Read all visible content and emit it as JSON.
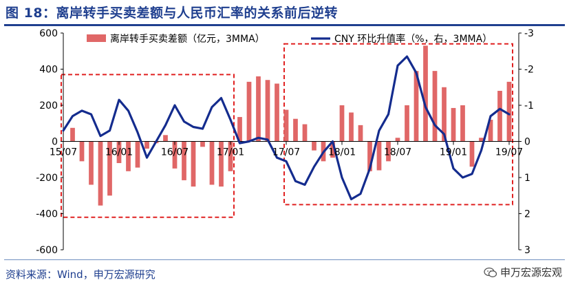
{
  "title": "图 18：离岸转手买卖差额与人民币汇率的关系前后逆转",
  "source": "资料来源：Wind，申万宏源研究",
  "brand": "申万宏源宏观",
  "brand_icon": "wechat-icon",
  "colors": {
    "bar": "#e06767",
    "line": "#142c8e",
    "box": "#e02020",
    "title": "#1f3f8f",
    "axis": "#000000"
  },
  "chart_data": {
    "type": "bar+line",
    "legend": {
      "placement": "top",
      "bar_label": "离岸转手买卖差额（亿元，3MMA）",
      "line_label": "CNY 环比升值率（%，右，3MMA）"
    },
    "left_axis": {
      "ylim": [
        -600,
        600
      ],
      "ticks": [
        "600",
        "400",
        "200",
        "0",
        "-200",
        "-400",
        "-600"
      ],
      "tick_values": [
        600,
        400,
        200,
        0,
        -200,
        -400,
        -600
      ]
    },
    "right_axis": {
      "ylim": [
        -3,
        3
      ],
      "inverted": true,
      "ticks": [
        "-3",
        "-2",
        "-1",
        "0",
        "1",
        "2",
        "3"
      ],
      "tick_values": [
        -3,
        -2,
        -1,
        0,
        1,
        2,
        3
      ]
    },
    "x_ticks": [
      {
        "label": "15/07",
        "index": 0
      },
      {
        "label": "16/01",
        "index": 6
      },
      {
        "label": "16/07",
        "index": 12
      },
      {
        "label": "17/01",
        "index": 18
      },
      {
        "label": "17/07",
        "index": 24
      },
      {
        "label": "18/01",
        "index": 30
      },
      {
        "label": "18/07",
        "index": 36
      },
      {
        "label": "19/01",
        "index": 42
      },
      {
        "label": "19/07",
        "index": 48
      }
    ],
    "months": [
      "15/07",
      "15/08",
      "15/09",
      "15/10",
      "15/11",
      "15/12",
      "16/01",
      "16/02",
      "16/03",
      "16/04",
      "16/05",
      "16/06",
      "16/07",
      "16/08",
      "16/09",
      "16/10",
      "16/11",
      "16/12",
      "17/01",
      "17/02",
      "17/03",
      "17/04",
      "17/05",
      "17/06",
      "17/07",
      "17/08",
      "17/09",
      "17/10",
      "17/11",
      "17/12",
      "18/01",
      "18/02",
      "18/03",
      "18/04",
      "18/05",
      "18/06",
      "18/07",
      "18/08",
      "18/09",
      "18/10",
      "18/11",
      "18/12",
      "19/01",
      "19/02",
      "19/03",
      "19/04",
      "19/05",
      "19/06",
      "19/07"
    ],
    "series": [
      {
        "name": "离岸转手买卖差额（亿元，3MMA）",
        "type": "bar",
        "axis": "left",
        "values": [
          0,
          75,
          -110,
          -240,
          -355,
          -300,
          -120,
          -165,
          -145,
          -40,
          -10,
          35,
          -150,
          -215,
          -250,
          -30,
          -240,
          -250,
          -165,
          135,
          330,
          360,
          340,
          320,
          175,
          125,
          95,
          -50,
          -110,
          -90,
          200,
          160,
          90,
          -165,
          -160,
          -110,
          20,
          200,
          390,
          530,
          390,
          300,
          185,
          200,
          -140,
          20,
          120,
          280,
          330
        ]
      },
      {
        "name": "CNY 环比升值率（%，右，3MMA）",
        "type": "line",
        "axis": "right",
        "values": [
          -0.3,
          -0.7,
          -0.85,
          -0.75,
          -0.15,
          -0.3,
          -1.15,
          -0.85,
          -0.25,
          0.45,
          0.0,
          -0.45,
          -1.0,
          -0.55,
          -0.4,
          -0.35,
          -0.95,
          -1.2,
          -0.6,
          0.05,
          0.0,
          -0.1,
          -0.05,
          0.45,
          0.55,
          1.1,
          1.2,
          0.7,
          0.3,
          0.0,
          1.0,
          1.6,
          1.45,
          0.75,
          -0.3,
          -0.75,
          -2.1,
          -2.35,
          -1.9,
          -0.95,
          -0.45,
          -0.2,
          0.75,
          1.0,
          0.9,
          0.25,
          -0.7,
          -0.9,
          -0.75
        ]
      }
    ],
    "annotations": [
      {
        "type": "dashed-box",
        "from": "15/07",
        "to": "17/01",
        "y_range_left": [
          -420,
          370
        ]
      },
      {
        "type": "dashed-box",
        "from": "17/07",
        "to": "19/07",
        "y_range_left": [
          -350,
          540
        ]
      }
    ]
  }
}
